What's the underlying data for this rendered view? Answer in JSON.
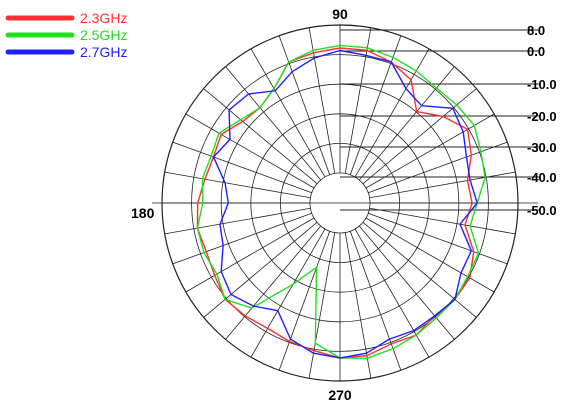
{
  "chart_data": {
    "type": "polar-line",
    "angular_ticks": [
      "90",
      "180",
      "270"
    ],
    "radial_ticks": [
      "8.0",
      "0.0",
      "-10.0",
      "-20.0",
      "-30.0",
      "-40.0",
      "-50.0"
    ],
    "radial_range": [
      -50,
      8
    ],
    "angular_divisions_deg": 10,
    "grid": true,
    "legend": {
      "placement": "top-left",
      "entries": [
        {
          "label": "2.3GHz",
          "color": "#ff3030"
        },
        {
          "label": "2.5GHz",
          "color": "#20e020"
        },
        {
          "label": "2.7GHz",
          "color": "#2020ff"
        }
      ]
    },
    "series": [
      {
        "name": "2.3GHz",
        "color": "#ff3030",
        "angles_deg": [
          0,
          10,
          20,
          30,
          40,
          50,
          60,
          70,
          80,
          90,
          100,
          110,
          120,
          130,
          140,
          150,
          160,
          170,
          180,
          190,
          200,
          210,
          220,
          230,
          240,
          250,
          260,
          270,
          280,
          290,
          300,
          310,
          320,
          330,
          340,
          350
        ],
        "values": [
          -10,
          -11,
          -7,
          -4,
          -9,
          -15,
          -6,
          -3,
          -1,
          -1,
          -2,
          -3,
          -10,
          -13,
          -12,
          -8,
          -9,
          -8,
          -6,
          -5,
          -6,
          -5,
          -3,
          -4,
          -5,
          -4,
          -3,
          -1,
          -1,
          -3,
          -2,
          -4,
          -3,
          -3,
          -6,
          -12
        ]
      },
      {
        "name": "2.5GHz",
        "color": "#20e020",
        "angles_deg": [
          0,
          10,
          20,
          30,
          40,
          50,
          60,
          70,
          80,
          90,
          100,
          110,
          120,
          130,
          140,
          150,
          160,
          170,
          180,
          190,
          200,
          210,
          220,
          230,
          240,
          250,
          260,
          270,
          280,
          290,
          300,
          310,
          320,
          330,
          340,
          350
        ],
        "values": [
          -8,
          -4,
          -3,
          -1,
          -2,
          -3,
          -2,
          -1,
          0,
          0,
          -1,
          -3,
          -10,
          -13,
          -11,
          -7,
          -8,
          -7,
          -8,
          -5,
          -5,
          -6,
          -3,
          -8,
          -25,
          -35,
          -6,
          -1,
          0,
          -1,
          -2,
          -3,
          -3,
          -4,
          -4,
          -10
        ]
      },
      {
        "name": "2.7GHz",
        "color": "#2020ff",
        "angles_deg": [
          0,
          10,
          20,
          30,
          40,
          50,
          60,
          70,
          80,
          90,
          100,
          110,
          120,
          130,
          140,
          150,
          160,
          170,
          180,
          190,
          200,
          210,
          220,
          230,
          240,
          250,
          260,
          270,
          280,
          290,
          300,
          310,
          320,
          330,
          340,
          350
        ],
        "values": [
          -8,
          -10,
          -9,
          -6,
          -4,
          -12,
          -10,
          -3,
          -3,
          -2,
          -4,
          -7,
          -11,
          -6,
          -5,
          -12,
          -9,
          -16,
          -18,
          -14,
          -13,
          -8,
          -6,
          -9,
          -13,
          -5,
          -2,
          -1,
          -2,
          -5,
          -4,
          -4,
          -3,
          -7,
          -7,
          -14
        ]
      }
    ]
  }
}
